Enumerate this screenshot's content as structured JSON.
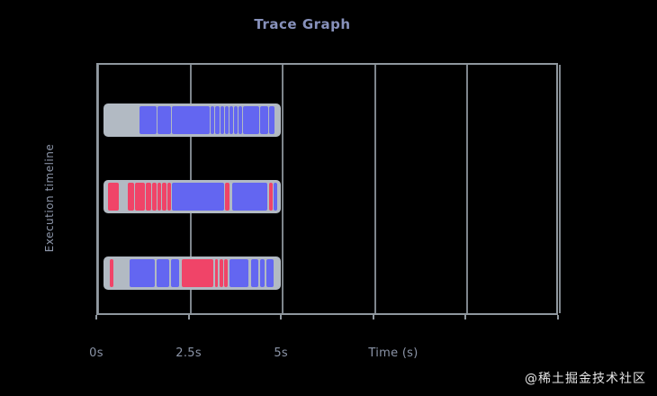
{
  "watermark": "@稀土掘金技术社区",
  "chart_data": {
    "type": "timeline",
    "title": "Trace Graph",
    "xlabel": "Time (s)",
    "ylabel": "Execution timeline",
    "xlim": [
      0,
      12.5
    ],
    "grid": "vertical",
    "legend": "none",
    "x_ticks": [
      {
        "value": 0,
        "label": "0s"
      },
      {
        "value": 2.5,
        "label": "2.5s"
      },
      {
        "value": 5,
        "label": "5s"
      },
      {
        "value": 7.5,
        "label": ""
      },
      {
        "value": 10,
        "label": ""
      },
      {
        "value": 12.5,
        "label": ""
      }
    ],
    "colors": {
      "blue": "#6366f1",
      "red": "#f04468",
      "track": "#b2bac3",
      "frame": "#8f979e",
      "text": "#8b94a7",
      "background": "#000000"
    },
    "rows": [
      {
        "name": "trace-row-1",
        "track": [
          0.15,
          4.95
        ],
        "segments": [
          [
            1.12,
            1.58,
            "blue"
          ],
          [
            1.61,
            1.97,
            "blue"
          ],
          [
            2.0,
            3.02,
            "blue"
          ],
          [
            3.05,
            3.14,
            "blue"
          ],
          [
            3.17,
            3.29,
            "blue"
          ],
          [
            3.31,
            3.41,
            "blue"
          ],
          [
            3.44,
            3.53,
            "blue"
          ],
          [
            3.56,
            3.66,
            "blue"
          ],
          [
            3.68,
            3.78,
            "blue"
          ],
          [
            3.8,
            3.9,
            "blue"
          ],
          [
            3.92,
            4.36,
            "blue"
          ],
          [
            4.39,
            4.61,
            "blue"
          ],
          [
            4.63,
            4.78,
            "blue"
          ]
        ]
      },
      {
        "name": "trace-row-2",
        "track": [
          0.15,
          4.95
        ],
        "segments": [
          [
            0.27,
            0.56,
            "red"
          ],
          [
            0.8,
            0.97,
            "red"
          ],
          [
            1.0,
            1.27,
            "red"
          ],
          [
            1.29,
            1.44,
            "red"
          ],
          [
            1.46,
            1.58,
            "red"
          ],
          [
            1.61,
            1.71,
            "red"
          ],
          [
            1.73,
            1.85,
            "red"
          ],
          [
            1.88,
            1.97,
            "red"
          ],
          [
            2.0,
            3.41,
            "blue"
          ],
          [
            3.44,
            3.56,
            "red"
          ],
          [
            3.63,
            4.58,
            "blue"
          ],
          [
            4.63,
            4.73,
            "red"
          ],
          [
            4.75,
            4.85,
            "blue"
          ]
        ]
      },
      {
        "name": "trace-row-3",
        "track": [
          0.15,
          4.95
        ],
        "segments": [
          [
            0.32,
            0.41,
            "red"
          ],
          [
            0.85,
            1.54,
            "blue"
          ],
          [
            1.58,
            1.93,
            "blue"
          ],
          [
            1.97,
            2.19,
            "blue"
          ],
          [
            2.27,
            3.12,
            "red"
          ],
          [
            3.17,
            3.24,
            "red"
          ],
          [
            3.29,
            3.39,
            "red"
          ],
          [
            3.41,
            3.51,
            "red"
          ],
          [
            3.56,
            4.07,
            "blue"
          ],
          [
            4.14,
            4.34,
            "blue"
          ],
          [
            4.39,
            4.51,
            "blue"
          ],
          [
            4.56,
            4.75,
            "blue"
          ]
        ]
      }
    ]
  }
}
